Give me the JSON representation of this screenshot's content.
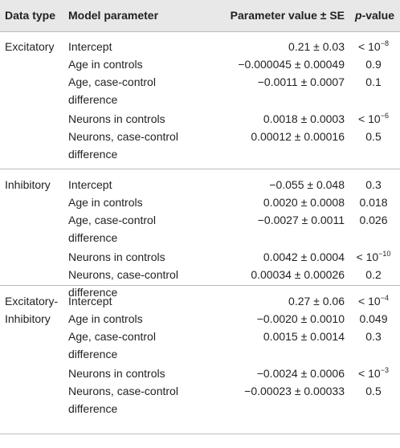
{
  "header": {
    "data_type": "Data type",
    "model_parameter": "Model parameter",
    "value": "Parameter value ± SE",
    "pvalue_italic": "p",
    "pvalue_rest": "-value"
  },
  "groups": [
    {
      "type_lines": [
        "Excitatory"
      ],
      "rows": [
        {
          "param": [
            "Intercept"
          ],
          "value": "0.21 ± 0.03",
          "p": {
            "base": "< 10",
            "exp": "−8"
          }
        },
        {
          "param": [
            "Age in controls"
          ],
          "value": "−0.000045 ± 0.00049",
          "p": {
            "base": "0.9"
          }
        },
        {
          "param": [
            "Age, case-control",
            "difference"
          ],
          "value": "−0.0011 ± 0.0007",
          "p": {
            "base": "0.1"
          }
        },
        {
          "param": [
            "Neurons in controls"
          ],
          "value": "0.0018 ± 0.0003",
          "p": {
            "base": "< 10",
            "exp": "−6"
          }
        },
        {
          "param": [
            "Neurons, case-control",
            "difference"
          ],
          "value": "0.00012 ± 0.00016",
          "p": {
            "base": "0.5"
          }
        }
      ]
    },
    {
      "type_lines": [
        "Inhibitory"
      ],
      "rows": [
        {
          "param": [
            "Intercept"
          ],
          "value": "−0.055 ± 0.048",
          "p": {
            "base": "0.3"
          }
        },
        {
          "param": [
            "Age in controls"
          ],
          "value": "0.0020 ± 0.0008",
          "p": {
            "base": "0.018"
          }
        },
        {
          "param": [
            "Age, case-control",
            "difference"
          ],
          "value": "−0.0027 ± 0.0011",
          "p": {
            "base": "0.026"
          }
        },
        {
          "param": [
            "Neurons in controls"
          ],
          "value": "0.0042 ± 0.0004",
          "p": {
            "base": "< 10",
            "exp": "−10"
          }
        },
        {
          "param": [
            "Neurons, case-control",
            "difference"
          ],
          "value": "0.00034 ± 0.00026",
          "p": {
            "base": "0.2"
          }
        }
      ]
    },
    {
      "type_lines": [
        "Excitatory-",
        "Inhibitory"
      ],
      "rows": [
        {
          "param": [
            "Intercept"
          ],
          "value": "0.27 ± 0.06",
          "p": {
            "base": "< 10",
            "exp": "−4"
          }
        },
        {
          "param": [
            "Age in controls"
          ],
          "value": "−0.0020 ± 0.0010",
          "p": {
            "base": "0.049"
          }
        },
        {
          "param": [
            "Age, case-control",
            "difference"
          ],
          "value": "0.0015 ± 0.0014",
          "p": {
            "base": "0.3"
          }
        },
        {
          "param": [
            "Neurons in controls"
          ],
          "value": "−0.0024 ± 0.0006",
          "p": {
            "base": "< 10",
            "exp": "−3"
          }
        },
        {
          "param": [
            "Neurons, case-control",
            "difference"
          ],
          "value": "−0.00023 ± 0.00033",
          "p": {
            "base": "0.5"
          }
        }
      ]
    }
  ]
}
